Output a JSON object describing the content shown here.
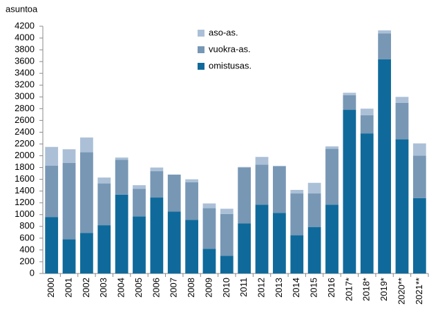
{
  "chart_data": {
    "type": "bar",
    "stacked": true,
    "y_label": "asuntoa",
    "categories": [
      "2000",
      "2001",
      "2002",
      "2003",
      "2004",
      "2005",
      "2006",
      "2007",
      "2008",
      "2009",
      "2010",
      "2011",
      "2012",
      "2013",
      "2014",
      "2015",
      "2016",
      "2017*",
      "2018*",
      "2019*",
      "2020**",
      "2021**"
    ],
    "series": [
      {
        "name": "omistusas.",
        "color": "#0f6a9b",
        "values": [
          960,
          580,
          690,
          820,
          1340,
          970,
          1290,
          1050,
          910,
          420,
          300,
          850,
          1170,
          1030,
          650,
          790,
          1170,
          2780,
          2380,
          3640,
          2280,
          1280
        ]
      },
      {
        "name": "vuokra-as.",
        "color": "#7797b5",
        "values": [
          870,
          1300,
          1370,
          710,
          590,
          470,
          450,
          630,
          640,
          690,
          710,
          950,
          680,
          790,
          710,
          570,
          950,
          250,
          310,
          440,
          620,
          720
        ]
      },
      {
        "name": "aso-as.",
        "color": "#abc0d7",
        "values": [
          320,
          230,
          250,
          100,
          40,
          60,
          60,
          0,
          50,
          80,
          90,
          10,
          130,
          10,
          60,
          180,
          40,
          40,
          110,
          50,
          100,
          210
        ]
      }
    ],
    "ylim": [
      0,
      4200
    ],
    "yticks": [
      0,
      200,
      400,
      600,
      800,
      1000,
      1200,
      1400,
      1600,
      1800,
      2000,
      2200,
      2400,
      2600,
      2800,
      3000,
      3200,
      3400,
      3600,
      3800,
      4000,
      4200
    ],
    "grid": false,
    "legend": "top-center"
  }
}
